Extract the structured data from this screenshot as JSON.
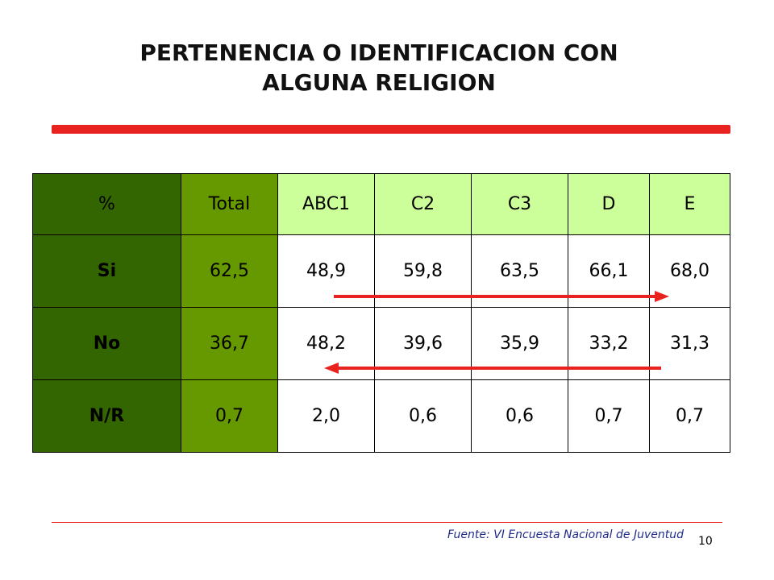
{
  "slide": {
    "title_line1": "PERTENENCIA O IDENTIFICACION CON",
    "title_line2": "ALGUNA RELIGION",
    "source": "Fuente: VI Encuesta Nacional de Juventud",
    "page_number": "10"
  },
  "table": {
    "headers": [
      "%",
      "Total",
      "ABC1",
      "C2",
      "C3",
      "D",
      "E"
    ],
    "rows": [
      {
        "label": "Si",
        "cells": [
          "62,5",
          "48,9",
          "59,8",
          "63,5",
          "66,1",
          "68,0"
        ]
      },
      {
        "label": "No",
        "cells": [
          "36,7",
          "48,2",
          "39,6",
          "35,9",
          "33,2",
          "31,3"
        ]
      },
      {
        "label": "N/R",
        "cells": [
          "0,7",
          "2,0",
          "0,6",
          "0,6",
          "0,7",
          "0,7"
        ]
      }
    ]
  },
  "colors": {
    "dark_green": "#336600",
    "mid_green": "#669900",
    "light_green": "#ccff99",
    "accent_red": "#e8231f",
    "source_blue": "#1f2a8a"
  },
  "annotations": {
    "arrow_si": "right",
    "arrow_no": "left"
  }
}
